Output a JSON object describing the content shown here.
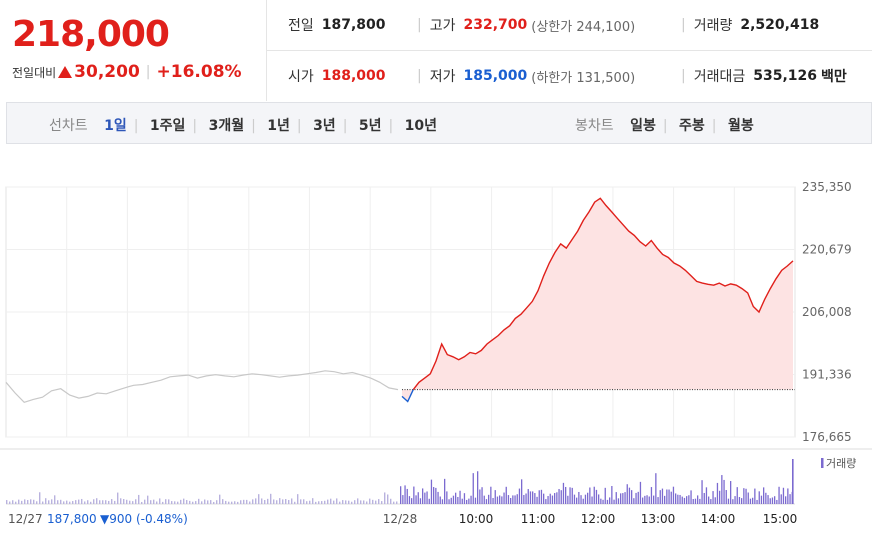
{
  "quote": {
    "price": "218,000",
    "change_label": "전일대비",
    "change_value": "30,200",
    "change_pct": "+16.08%",
    "prev_label": "전일",
    "prev_value": "187,800",
    "high_label": "고가",
    "high_value": "232,700",
    "upper_limit": "(상한가 244,100)",
    "volume_label": "거래량",
    "volume_value": "2,520,418",
    "open_label": "시가",
    "open_value": "188,000",
    "low_label": "저가",
    "low_value": "185,000",
    "lower_limit": "(하한가 131,500)",
    "amount_label": "거래대금",
    "amount_value": "535,126",
    "amount_unit": "백만"
  },
  "toolbar": {
    "line_label": "선차트",
    "periods": [
      "1일",
      "1주일",
      "3개월",
      "1년",
      "3년",
      "5년",
      "10년"
    ],
    "selected_period": "1일",
    "candle_label": "봉차트",
    "candles": [
      "일봉",
      "주봉",
      "월봉"
    ]
  },
  "colors": {
    "up": "#e0201b",
    "down": "#1a5fd1",
    "fill": "#fde3e3",
    "prev_line": "#c8c8c8",
    "volume": "#7b6ad0"
  },
  "chart_data": {
    "type": "area",
    "y_ticks": [
      "235,350",
      "220,679",
      "206,008",
      "191,336",
      "176,665"
    ],
    "ylim": [
      176665,
      235350
    ],
    "baseline": 187800,
    "x_ticks": [
      "12/28",
      "10:00",
      "11:00",
      "12:00",
      "13:00",
      "14:00",
      "15:00"
    ],
    "volume_legend": "거래량",
    "footer_date": "12/27",
    "footer_close": "187,800",
    "footer_change": "▼900 (-0.48%)",
    "prev_day_series": [
      189500,
      187000,
      184800,
      185500,
      186000,
      187500,
      188000,
      186500,
      185800,
      186200,
      187000,
      186800,
      187500,
      188200,
      188800,
      189000,
      189500,
      190000,
      190800,
      191000,
      191200,
      190500,
      191000,
      191300,
      191000,
      190800,
      191200,
      191500,
      191300,
      191000,
      190700,
      191000,
      191200,
      191500,
      191800,
      192200,
      192000,
      191500,
      191800,
      191200,
      190500,
      189500,
      188200,
      187800
    ],
    "today_series": [
      186200,
      185000,
      187800,
      189500,
      190500,
      191500,
      194500,
      198500,
      196000,
      195500,
      194800,
      195500,
      196500,
      196200,
      197000,
      198500,
      199500,
      200500,
      201800,
      202800,
      204500,
      205500,
      207000,
      208500,
      211000,
      214500,
      217500,
      220000,
      222000,
      221000,
      223000,
      225000,
      227500,
      229500,
      231800,
      232700,
      231000,
      229500,
      228000,
      226500,
      225000,
      224000,
      222500,
      221500,
      222800,
      221000,
      219500,
      218800,
      217500,
      216800,
      215800,
      214500,
      213200,
      212800,
      212500,
      212300,
      212800,
      212100,
      212600,
      212300,
      211500,
      210500,
      207300,
      206000,
      209000,
      211500,
      213800,
      215800,
      216800,
      218000
    ]
  }
}
